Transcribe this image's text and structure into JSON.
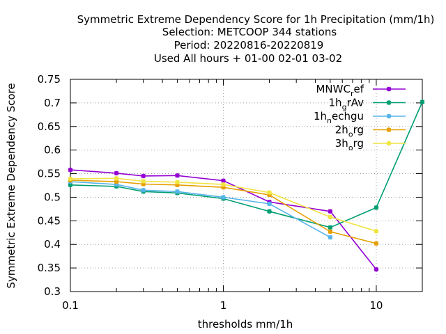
{
  "chart_data": {
    "type": "line",
    "title_lines": [
      "Symmetric Extreme Dependency Score  for 1h Precipitation (mm/1h)",
      "Selection: METCOOP    344 stations",
      "Period: 20220816-20220819",
      "Used  All hours + 01-00 02-01 03-02"
    ],
    "xlabel": "thresholds mm/1h",
    "ylabel": "Symmetric Extreme Dependency Score",
    "x_scale": "log",
    "xlim": [
      0.1,
      20
    ],
    "ylim": [
      0.3,
      0.75
    ],
    "x_ticks": [
      {
        "value": 0.1,
        "label": "0.1"
      },
      {
        "value": 1,
        "label": "1"
      },
      {
        "value": 10,
        "label": "10"
      }
    ],
    "y_ticks": [
      {
        "value": 0.3,
        "label": "0.3"
      },
      {
        "value": 0.35,
        "label": "0.35"
      },
      {
        "value": 0.4,
        "label": "0.4"
      },
      {
        "value": 0.45,
        "label": "0.45"
      },
      {
        "value": 0.5,
        "label": "0.5"
      },
      {
        "value": 0.55,
        "label": "0.55"
      },
      {
        "value": 0.6,
        "label": "0.6"
      },
      {
        "value": 0.65,
        "label": "0.65"
      },
      {
        "value": 0.7,
        "label": "0.7"
      },
      {
        "value": 0.75,
        "label": "0.75"
      }
    ],
    "grid": true,
    "legend_position": "top-right",
    "series": [
      {
        "name": "MNWC_ref",
        "label_main": "MNWC",
        "label_sub": "r",
        "label_tail": "ef",
        "color": "#9400d3",
        "points": [
          [
            0.1,
            0.558
          ],
          [
            0.2,
            0.551
          ],
          [
            0.3,
            0.545
          ],
          [
            0.5,
            0.546
          ],
          [
            1,
            0.535
          ],
          [
            2,
            0.49
          ],
          [
            5,
            0.47
          ],
          [
            10,
            0.347
          ]
        ]
      },
      {
        "name": "1h_grAv",
        "label_main": "1h",
        "label_sub": "g",
        "label_tail": "rAv",
        "color": "#009e73",
        "points": [
          [
            0.1,
            0.526
          ],
          [
            0.2,
            0.523
          ],
          [
            0.3,
            0.512
          ],
          [
            0.5,
            0.509
          ],
          [
            1,
            0.497
          ],
          [
            2,
            0.47
          ],
          [
            5,
            0.436
          ],
          [
            10,
            0.478
          ],
          [
            20,
            0.702
          ]
        ]
      },
      {
        "name": "1h_nechgu",
        "label_main": "1h",
        "label_sub": "n",
        "label_tail": "echgu",
        "color": "#56b4e9",
        "points": [
          [
            0.1,
            0.533
          ],
          [
            0.2,
            0.527
          ],
          [
            0.3,
            0.515
          ],
          [
            0.5,
            0.512
          ],
          [
            1,
            0.5
          ],
          [
            2,
            0.486
          ],
          [
            5,
            0.415
          ]
        ]
      },
      {
        "name": "2h_org",
        "label_main": "2h",
        "label_sub": "o",
        "label_tail": "rg",
        "color": "#e69f00",
        "points": [
          [
            0.1,
            0.536
          ],
          [
            0.2,
            0.533
          ],
          [
            0.3,
            0.528
          ],
          [
            0.5,
            0.526
          ],
          [
            1,
            0.521
          ],
          [
            2,
            0.505
          ],
          [
            5,
            0.427
          ],
          [
            10,
            0.402
          ]
        ]
      },
      {
        "name": "3h_org",
        "label_main": "3h",
        "label_sub": "o",
        "label_tail": "rg",
        "color": "#f0e442",
        "points": [
          [
            0.1,
            0.539
          ],
          [
            0.2,
            0.54
          ],
          [
            0.3,
            0.534
          ],
          [
            0.5,
            0.532
          ],
          [
            1,
            0.527
          ],
          [
            2,
            0.51
          ],
          [
            5,
            0.458
          ],
          [
            10,
            0.428
          ]
        ]
      }
    ]
  }
}
